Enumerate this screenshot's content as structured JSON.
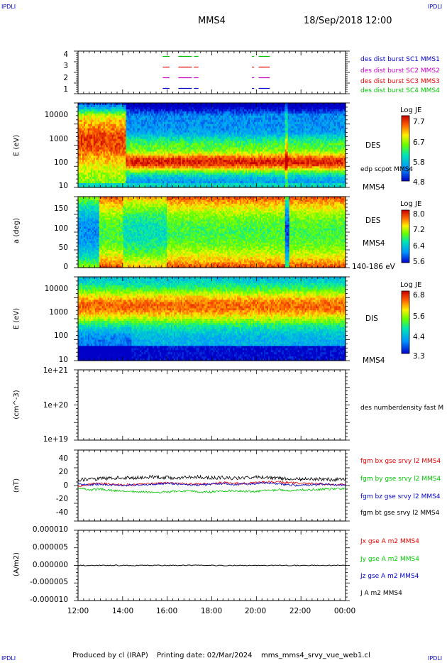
{
  "header": {
    "corner_label": "IPDLI",
    "spacecraft": "MMS4",
    "datetime": "18/Sep/2018 12:00"
  },
  "footer": {
    "produced_by": "Produced by cl (IRAP)",
    "printing_date": "Printing date: 02/Mar/2024",
    "script": "mms_mms4_srvy_vue_web1.cl"
  },
  "time_axis": {
    "ticks": [
      "12:00",
      "14:00",
      "16:00",
      "18:00",
      "20:00",
      "22:00",
      "00:00"
    ],
    "range_hours": [
      0,
      12
    ]
  },
  "panels": {
    "burst": {
      "yticks": [
        "4",
        "3",
        "2",
        "1"
      ],
      "labels": [
        {
          "text": "des dist burst SC1 MMS1",
          "color": "#0000c8"
        },
        {
          "text": "des dist burst SC2 MMS2",
          "color": "#c800c8"
        },
        {
          "text": "des dist burst SC3 MMS3",
          "color": "#e60000"
        },
        {
          "text": "des dist burst SC4 MMS4",
          "color": "#00c800"
        }
      ]
    },
    "des_energy": {
      "ylabel": "E (eV)",
      "yticks": [
        "10000",
        "1000",
        "100",
        "10"
      ],
      "instrument": "DES",
      "overlay": "edp scpot MMS4",
      "sc": "MMS4",
      "colorbar": {
        "title": "Log JE",
        "ticks": [
          "7.7",
          "6.7",
          "5.8",
          "4.8"
        ]
      }
    },
    "des_pitch": {
      "ylabel": "a (deg)",
      "yticks": [
        "150",
        "100",
        "50",
        "0"
      ],
      "instrument": "DES",
      "sc": "MMS4",
      "energy_range": "140-186 eV",
      "colorbar": {
        "title": "Log JE",
        "ticks": [
          "8.0",
          "7.2",
          "6.4",
          "5.6"
        ]
      }
    },
    "dis_energy": {
      "ylabel": "E (eV)",
      "yticks": [
        "10000",
        "1000",
        "100",
        "10"
      ],
      "instrument": "DIS",
      "sc": "MMS4",
      "colorbar": {
        "title": "Log JE",
        "ticks": [
          "6.8",
          "5.6",
          "4.4",
          "3.3"
        ]
      }
    },
    "density": {
      "ylabel": "(cm^-3)",
      "yticks": [
        "1e+21",
        "1e+20",
        "1e+19"
      ],
      "label": "des numberdensity fast M"
    },
    "bfield": {
      "ylabel": "(nT)",
      "yticks": [
        "40",
        "20",
        "0",
        "-20",
        "-40"
      ],
      "labels": [
        {
          "text": "fgm bx gse srvy l2 MMS4",
          "color": "#e60000"
        },
        {
          "text": "fgm by gse srvy l2 MMS4",
          "color": "#00c800"
        },
        {
          "text": "fgm bz gse srvy l2 MMS4",
          "color": "#0000c8"
        },
        {
          "text": "fgm bt gse srvy l2 MMS4",
          "color": "#000000"
        }
      ]
    },
    "current": {
      "ylabel": "(A/m2)",
      "yticks": [
        "0.000010",
        "0.000005",
        "0.000000",
        "-0.000005",
        "-0.000010"
      ],
      "labels": [
        {
          "text": "Jx gse A m2 MMS4",
          "color": "#e60000"
        },
        {
          "text": "Jy gse A m2 MMS4",
          "color": "#00c800"
        },
        {
          "text": "Jz gse A m2 MMS4",
          "color": "#0000c8"
        },
        {
          "text": "J A m2 MMS4",
          "color": "#000000"
        }
      ]
    }
  },
  "chart_data": [
    {
      "type": "line",
      "x_unit": "hours after 12:00 UT",
      "xlim": [
        0,
        12
      ],
      "ylim": [
        0.5,
        4.5
      ],
      "series": [
        {
          "name": "des dist burst SC4 MMS4",
          "y": 4,
          "intervals": [
            [
              3.8,
              4.1
            ],
            [
              4.5,
              5.1
            ],
            [
              5.2,
              5.4
            ],
            [
              7.8,
              7.9
            ],
            [
              8.1,
              8.6
            ]
          ]
        },
        {
          "name": "des dist burst SC3 MMS3",
          "y": 3,
          "intervals": [
            [
              3.8,
              4.1
            ],
            [
              4.5,
              5.1
            ],
            [
              5.2,
              5.4
            ],
            [
              7.8,
              7.9
            ],
            [
              8.1,
              8.6
            ]
          ]
        },
        {
          "name": "des dist burst SC2 MMS2",
          "y": 2,
          "intervals": [
            [
              3.8,
              4.1
            ],
            [
              4.5,
              5.1
            ],
            [
              5.2,
              5.4
            ],
            [
              7.8,
              7.9
            ],
            [
              8.1,
              8.6
            ]
          ]
        },
        {
          "name": "des dist burst SC1 MMS1",
          "y": 1,
          "intervals": [
            [
              3.8,
              4.1
            ],
            [
              4.5,
              5.1
            ],
            [
              5.2,
              5.4
            ],
            [
              7.8,
              7.9
            ],
            [
              8.1,
              8.6
            ]
          ]
        }
      ]
    },
    {
      "type": "heatmap",
      "instrument": "DES",
      "x_unit": "hours after 12:00 UT",
      "xlim": [
        0,
        12
      ],
      "y_scale": "log",
      "ylim": [
        10,
        30000
      ],
      "z_label": "Log JE",
      "zlim": [
        4.8,
        7.7
      ]
    },
    {
      "type": "heatmap",
      "instrument": "DES",
      "energy_range": "140-186 eV",
      "x_unit": "hours after 12:00 UT",
      "xlim": [
        0,
        12
      ],
      "ylim": [
        0,
        180
      ],
      "z_label": "Log JE",
      "zlim": [
        5.6,
        8.0
      ]
    },
    {
      "type": "heatmap",
      "instrument": "DIS",
      "x_unit": "hours after 12:00 UT",
      "xlim": [
        0,
        12
      ],
      "y_scale": "log",
      "ylim": [
        10,
        30000
      ],
      "z_label": "Log JE",
      "zlim": [
        3.3,
        6.8
      ]
    },
    {
      "type": "line",
      "y_scale": "log",
      "ylim": [
        1e+19,
        1e+21
      ],
      "series": []
    },
    {
      "type": "line",
      "x_unit": "hours after 12:00 UT",
      "xlim": [
        0,
        12
      ],
      "ylim": [
        -50,
        50
      ],
      "x": [
        0,
        0.5,
        1,
        1.5,
        2,
        2.5,
        3,
        3.5,
        4,
        4.5,
        5,
        5.5,
        6,
        6.5,
        7,
        7.5,
        8,
        8.5,
        9,
        9.5,
        10,
        10.5,
        11,
        11.5,
        12
      ],
      "series": [
        {
          "name": "fgm bx gse srvy l2 MMS4",
          "color": "#e60000",
          "values": [
            -2,
            2,
            3,
            2,
            1,
            1,
            2,
            3,
            4,
            3,
            2,
            2,
            3,
            4,
            3,
            3,
            4,
            5,
            5,
            4,
            3,
            3,
            2,
            1,
            2
          ]
        },
        {
          "name": "fgm by gse srvy l2 MMS4",
          "color": "#00c800",
          "values": [
            -4,
            -6,
            -5,
            -7,
            -8,
            -9,
            -9,
            -10,
            -9,
            -8,
            -8,
            -9,
            -9,
            -8,
            -7,
            -8,
            -8,
            -7,
            -6,
            -7,
            -6,
            -6,
            -5,
            -5,
            -4
          ]
        },
        {
          "name": "fgm bz gse srvy l2 MMS4",
          "color": "#0000c8",
          "values": [
            2,
            1,
            2,
            1,
            0,
            1,
            1,
            2,
            3,
            2,
            1,
            1,
            2,
            3,
            2,
            2,
            3,
            4,
            2,
            1,
            0,
            1,
            2,
            1,
            1
          ]
        },
        {
          "name": "fgm bt gse srvy l2 MMS4",
          "color": "#000000",
          "values": [
            8,
            9,
            10,
            10,
            11,
            11,
            12,
            12,
            11,
            11,
            12,
            12,
            11,
            11,
            10,
            11,
            12,
            11,
            10,
            10,
            9,
            9,
            9,
            8,
            10
          ]
        }
      ]
    },
    {
      "type": "line",
      "x_unit": "hours after 12:00 UT",
      "xlim": [
        0,
        12
      ],
      "ylim": [
        -1e-05,
        1e-05
      ],
      "x": [
        0,
        3,
        6,
        9,
        12
      ],
      "series": [
        {
          "name": "J A m2 MMS4",
          "color": "#000000",
          "values": [
            0,
            0,
            0,
            0,
            0
          ]
        }
      ]
    }
  ]
}
